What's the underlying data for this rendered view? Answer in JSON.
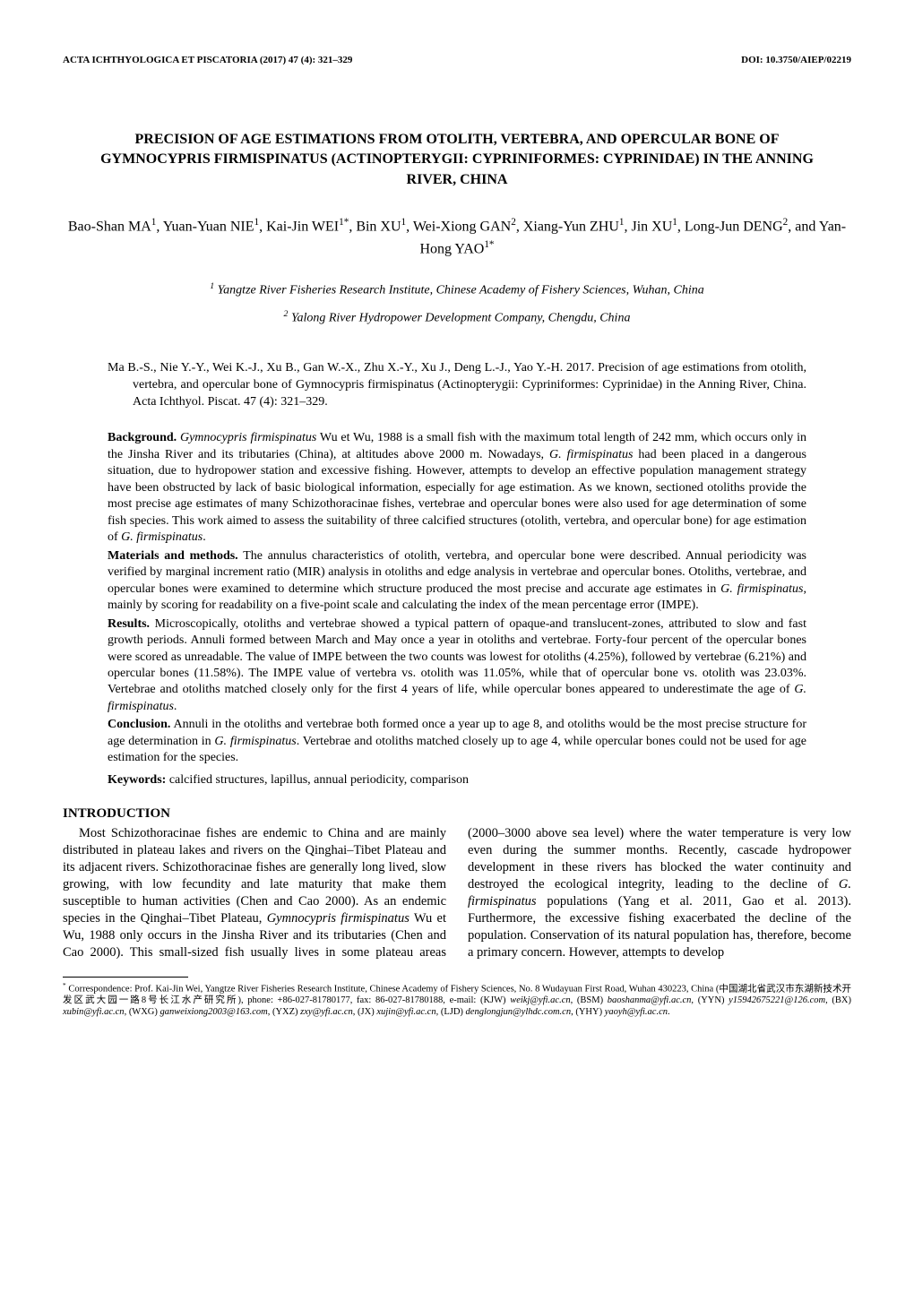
{
  "header": {
    "journal": "ACTA ICHTHYOLOGICA ET PISCATORIA (2017) 47 (4): 321–329",
    "doi": "DOI: 10.3750/AIEP/02219"
  },
  "title_html": "PRECISION OF AGE ESTIMATIONS FROM OTOLITH, VERTEBRA, AND OPERCULAR BONE OF <span class=\"ital\">GYMNOCYPRIS FIRMISPINATUS</span> (ACTINOPTERYGII: CYPRINIFORMES: CYPRINIDAE) IN THE ANNING RIVER, CHINA",
  "authors_html": "Bao-Shan MA<sup>1</sup>, Yuan-Yuan NIE<sup>1</sup>, Kai-Jin WEI<sup>1*</sup>, Bin XU<sup>1</sup>, Wei-Xiong GAN<sup>2</sup>, Xiang-Yun ZHU<sup>1</sup>, Jin XU<sup>1</sup>, Long-Jun DENG<sup>2</sup>, and Yan-Hong YAO<sup>1*</sup>",
  "affiliations": [
    {
      "sup": "1",
      "text": "Yangtze River Fisheries Research Institute, Chinese Academy of Fishery Sciences, Wuhan, China"
    },
    {
      "sup": "2",
      "text": "Yalong River Hydropower Development Company, Chengdu, China"
    }
  ],
  "citation_html": "Ma B.-S., Nie Y.-Y., Wei K.-J., Xu B., Gan W.-X., Zhu X.-Y., Xu J., Deng L.-J., Yao Y.-H. 2017. Precision of age estimations from otolith, vertebra, and opercular bone of <span class=\"ital\">Gymnocypris firmispinatus</span> (Actinopterygii: Cypriniformes: Cyprinidae) in the Anning River, China. Acta Ichthyol. Piscat. 47 (4): 321–329.",
  "abstract": [
    {
      "label": "Background.",
      "html": " <span class=\"ital\">Gymnocypris firmispinatus</span> Wu et Wu, 1988 is a small fish with the maximum total length of 242 mm, which occurs only in the Jinsha River and its tributaries (China), at altitudes above 2000 m. Nowadays, <span class=\"ital\">G. firmispinatus</span> had been placed in a dangerous situation, due to hydropower station and excessive fishing. However, attempts to develop an effective population management strategy have been obstructed by lack of basic biological information, especially for age estimation. As we known, sectioned otoliths provide the most precise age estimates of many Schizothoracinae fishes, vertebrae and opercular bones were also used for age determination of some fish species. This work aimed to assess the suitability of three calcified structures (otolith, vertebra, and opercular bone) for age estimation of <span class=\"ital\">G. firmispinatus</span>."
    },
    {
      "label": "Materials and methods.",
      "html": " The annulus characteristics of otolith, vertebra, and opercular bone were described. Annual periodicity was verified by marginal increment ratio (MIR) analysis in otoliths and edge analysis in vertebrae and opercular bones. Otoliths, vertebrae, and opercular bones were examined to determine which structure produced the most precise and accurate age estimates in <span class=\"ital\">G. firmispinatus</span>, mainly by scoring for readability on a five-point scale and calculating the index of the mean percentage error (IMPE)."
    },
    {
      "label": "Results.",
      "html": " Microscopically, otoliths and vertebrae showed a typical pattern of opaque-and translucent-zones, attributed to slow and fast growth periods. Annuli formed between March and May once a year in otoliths and vertebrae. Forty-four percent of the opercular bones were scored as unreadable. The value of IMPE between the two counts was lowest for otoliths (4.25%), followed by vertebrae (6.21%) and opercular bones (11.58%). The IMPE value of vertebra vs. otolith was 11.05%, while that of opercular bone vs. otolith was 23.03%. Vertebrae and otoliths matched closely only for the first 4 years of life, while opercular bones appeared to underestimate the age of <span class=\"ital\">G. firmispinatus</span>."
    },
    {
      "label": "Conclusion.",
      "html": " Annuli in the otoliths and vertebrae both formed once a year up to age 8, and otoliths would be the most precise structure for age determination in <span class=\"ital\">G. firmispinatus</span>. Vertebrae and otoliths matched closely up to age 4, while opercular bones could not be used for age estimation for the species."
    }
  ],
  "keywords": {
    "label": "Keywords:",
    "text": " calcified structures, lapillus, annual periodicity, comparison"
  },
  "section_heading": "INTRODUCTION",
  "intro_html": "Most Schizothoracinae fishes are endemic to China and are mainly distributed in plateau lakes and rivers on the Qinghai–Tibet Plateau and its adjacent rivers. Schizothoracinae fishes are generally long lived, slow growing, with low fecundity and late maturity that make them susceptible to human activities (Chen and Cao 2000). As an endemic species in the Qinghai–Tibet Plateau, <span class=\"ital\">Gymnocypris firmispinatus</span> Wu et Wu, 1988 only occurs in the Jinsha River and its tributaries (Chen and Cao 2000). This small-sized fish usually lives in some plateau areas (2000–3000 above sea level) where the water temperature is very low even during the summer months. Recently, cascade hydropower development in these rivers has blocked the water continuity and destroyed the ecological integrity, leading to the decline of <span class=\"ital\">G. firmispinatus</span> populations (Yang et al. 2011, Gao et al. 2013). Furthermore, the excessive fishing exacerbated the decline of the population. Conservation of its natural population has, therefore, become a primary concern. However, attempts to develop",
  "footnote_html": "<sup>*</sup> Correspondence: Prof. Kai-Jin Wei, Yangtze River Fisheries Research Institute, Chinese Academy of Fishery Sciences, No. 8 Wudayuan First Road, Wuhan 430223, China (中国湖北省武汉市东湖新技术开发区武大园一路8号长江水产研究所), phone: +86-027-81780177, fax: 86-027-81780188, e-mail: (KJW) <span class=\"ital\">weikj@yfi.ac.cn</span>, (BSM) <span class=\"ital\">baoshanma@yfi.ac.cn</span>, (YYN) <span class=\"ital\">y15942675221@126.com</span>, (BX) <span class=\"ital\">xubin@yfi.ac.cn</span>, (WXG) <span class=\"ital\">ganweixiong2003@163.com</span>, (YXZ) <span class=\"ital\">zxy@yfi.ac.cn</span>, (JX) <span class=\"ital\">xujin@yfi.ac.cn</span>, (LJD) <span class=\"ital\">denglongjun@ylhdc.com.cn</span>, (YHY) <span class=\"ital\">yaoyh@yfi.ac.cn</span>."
}
